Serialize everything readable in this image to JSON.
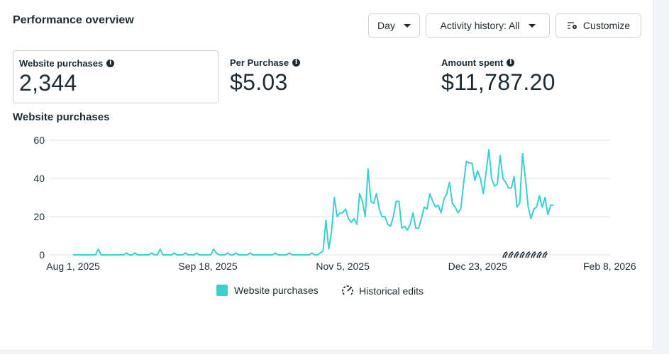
{
  "header": {
    "title": "Performance overview"
  },
  "toolbar": {
    "day_label": "Day",
    "activity_label": "Activity history: All",
    "customize_label": "Customize"
  },
  "metrics": [
    {
      "label": "Website purchases",
      "value": "2,344",
      "selected": true
    },
    {
      "label": "Per Purchase",
      "value": "$5.03"
    },
    {
      "label": "Amount spent",
      "value": "$11,787.20"
    }
  ],
  "chart_title": "Website purchases",
  "legend": {
    "series": "Website purchases",
    "edits": "Historical edits"
  },
  "colors": {
    "series": "#3ad0d0",
    "grid": "#e4e6eb"
  },
  "chart_data": {
    "type": "line",
    "x_start": "2025-08-01",
    "interval": "day",
    "x_ticks": [
      "Aug 1, 2025",
      "Sep 18, 2025",
      "Nov 5, 2025",
      "Dec 23, 2025",
      "Feb 8, 2026"
    ],
    "y_ticks": [
      "0",
      "20",
      "40",
      "60"
    ],
    "ylim": [
      0,
      60
    ],
    "grid": true,
    "legend": "bottom",
    "series": [
      {
        "name": "Website purchases",
        "values": [
          0,
          0,
          0,
          0,
          0,
          0,
          0,
          0,
          0,
          3,
          0,
          0,
          0,
          0,
          0,
          0,
          0,
          0,
          0,
          1,
          0,
          0,
          1,
          0,
          0,
          0,
          0,
          0,
          1,
          0,
          0,
          3,
          0,
          0,
          0,
          0,
          1,
          0,
          0,
          0,
          1,
          0,
          0,
          0,
          1,
          0,
          0,
          0,
          0,
          0,
          3,
          1,
          0,
          0,
          0,
          1,
          0,
          0,
          1,
          0,
          0,
          0,
          0,
          1,
          0,
          0,
          0,
          0,
          0,
          0,
          0,
          0,
          1,
          0,
          0,
          0,
          0,
          1,
          0,
          0,
          0,
          0,
          0,
          0,
          0,
          1,
          0,
          0,
          1,
          2,
          18,
          3,
          12,
          30,
          20,
          22,
          22,
          24,
          19,
          17,
          19,
          16,
          32,
          28,
          20,
          45,
          28,
          27,
          32,
          24,
          20,
          20,
          16,
          15,
          20,
          28,
          28,
          14,
          15,
          13,
          16,
          22,
          14,
          14,
          19,
          25,
          24,
          32,
          28,
          25,
          26,
          22,
          29,
          32,
          38,
          27,
          25,
          22,
          24,
          37,
          49,
          48,
          48,
          39,
          44,
          40,
          32,
          43,
          55,
          40,
          36,
          37,
          52,
          40,
          38,
          35,
          35,
          41,
          25,
          27,
          53,
          40,
          25,
          19,
          24,
          25,
          31,
          25,
          30,
          21,
          26,
          26
        ]
      }
    ],
    "annotations": [
      "historical-edits-markers"
    ]
  }
}
